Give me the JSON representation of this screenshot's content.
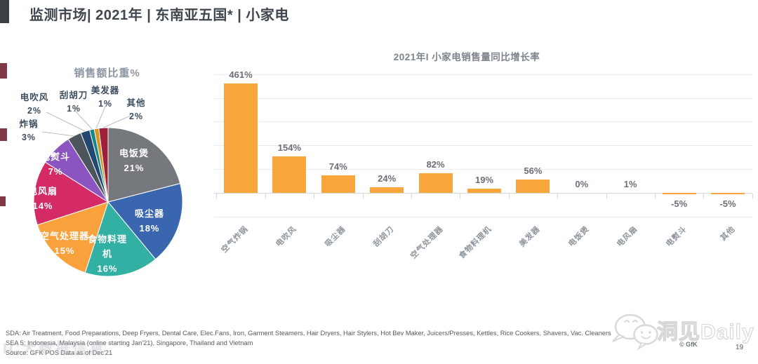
{
  "header": {
    "title": "监测市场| 2021年 | 东南亚五国* | 小家电",
    "accent_color": "#3b4147"
  },
  "chart_data": [
    {
      "type": "pie",
      "title": "销售额比重%",
      "unit": "%",
      "slices": [
        {
          "label": "电饭煲",
          "value": 21,
          "color": "#75787d",
          "label_position": "inside"
        },
        {
          "label": "吸尘器",
          "value": 18,
          "color": "#3a66b0",
          "label_position": "inside"
        },
        {
          "label": "食物料理机",
          "value": 16,
          "color": "#31b0a3",
          "label_position": "inside"
        },
        {
          "label": "空气处理器",
          "value": 15,
          "color": "#f9a13b",
          "label_position": "inside"
        },
        {
          "label": "电风扇",
          "value": 14,
          "color": "#d42a65",
          "label_position": "inside"
        },
        {
          "label": "电熨斗",
          "value": 7,
          "color": "#8b54c0",
          "label_position": "inside"
        },
        {
          "label": "炸锅",
          "value": 3,
          "color": "#4c545c",
          "label_position": "outside"
        },
        {
          "label": "电吹风",
          "value": 2,
          "color": "#24476f",
          "label_position": "outside"
        },
        {
          "label": "刮胡刀",
          "value": 1,
          "color": "#17868c",
          "label_position": "outside"
        },
        {
          "label": "美发器",
          "value": 1,
          "color": "#d7941f",
          "label_position": "outside"
        },
        {
          "label": "其他",
          "value": 2,
          "color": "#9e2039",
          "label_position": "outside"
        }
      ]
    },
    {
      "type": "bar",
      "title": "2021年I 小家电销售量同比增长率",
      "categories": [
        "空气炸锅",
        "电吹风",
        "吸尘器",
        "刮胡刀",
        "空气处理器",
        "食物料理机",
        "美发器",
        "电饭煲",
        "电风扇",
        "电熨斗",
        "其他"
      ],
      "values": [
        461,
        154,
        74,
        24,
        82,
        19,
        56,
        0,
        1,
        -5,
        -5
      ],
      "value_labels": [
        "461%",
        "154%",
        "74%",
        "24%",
        "82%",
        "19%",
        "56%",
        "0%",
        "1%",
        "-5%",
        "-5%"
      ],
      "bar_color": "#f9a63c",
      "ylim": [
        -100,
        500
      ],
      "grid_step": 100,
      "grid": true,
      "legend": "none",
      "xlabel": "",
      "ylabel": ""
    }
  ],
  "footer": {
    "line1": "SDA: Air Treatment, Food Preparations, Deep Fryers, Dental Care, Elec.Fans, Iron, Garment Steamers, Hair Dryers, Hair Stylers, Hot Bev Maker, Juicers/Presses, Kettles,  Rice Cookers, Shavers, Vac. Cleaners",
    "line2": "SEA 5: Indonesia, Malaysia (online starting Jan'21), Singapore, Thailand and Vietnam",
    "line3": "Source: GFK POS Data as of Dec'21"
  },
  "watermarks": {
    "left_text": "IC大数据信息",
    "right_text": "洞见Daily",
    "right_logo": "chat-bubbles-icon"
  },
  "meta": {
    "copyright": "© GfK",
    "page_number": "19"
  }
}
